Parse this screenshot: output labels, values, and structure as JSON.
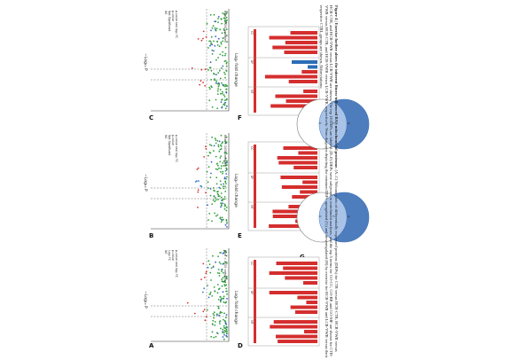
{
  "panel_labels": [
    "A",
    "B",
    "C",
    "D",
    "E",
    "F",
    "G",
    "H"
  ],
  "volcano": {
    "x_label": "Log₂ fold change",
    "y_label": "−Log₁₀ P",
    "panel_a_legend": [
      "NS",
      "Log₂ FC",
      "p-value",
      "p-value and log₂ FC"
    ],
    "panel_b_legend": [
      "NS",
      "Not Significant",
      "p-value",
      "p-value and log₂ FC"
    ],
    "panel_c_legend": [
      "NS",
      "Not Significant",
      "p-value",
      "p-value and log₂ FC"
    ],
    "footer": "total = 2450 variables"
  },
  "enrichment_headers": [
    "CC",
    "BP",
    "MF"
  ],
  "venn": {
    "left": "A",
    "right": "B",
    "overlap": "C"
  },
  "caption_title": "Figure 4 | Exercise further alters the inherent fitness-influenced RAS mitochondrial proteome.",
  "caption_body": "(A–C) Volcano plots of differentially expressed proteins (DEPs) for CTR versus HCR-CTR, HCR-VWR versus HCR-CTR, and HCR-VWR versus LCR-VWR are shown. The top 10 DEPs are labeled. (D–F) DEPs were subjected to enrichment analyses, and the top 5 terms for GO-CC, GO-BP, and GO-MF are shown for CTR-VWR versus HCR-CTR, and HCR-VWR versus LCR-VWR, respectively. Venn diagrams depicting the common DEPs upregulated (G) and downregulated (H) by exercise for HCR-VWR and LCR-VWR versus their respective CTRL groups are shown. Abbreviations:",
  "colors": {
    "ns": "#2e9e3a",
    "fc": "#3a5fd0",
    "p": "#2f7fd6",
    "both": "#d8322f",
    "enrich": "#d42e2e",
    "enrich_blue": "#2a6db5",
    "venn_fill": "#3b6fb6"
  }
}
